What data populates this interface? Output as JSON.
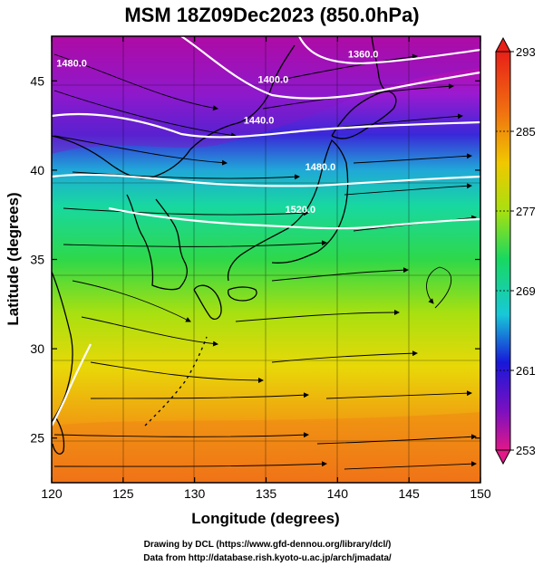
{
  "title": "MSM 18Z09Dec2023 (850.0hPa)",
  "x_axis": {
    "label": "Longitude (degrees)",
    "min": 120,
    "max": 150,
    "ticks": [
      "120",
      "125",
      "130",
      "135",
      "140",
      "145",
      "150"
    ]
  },
  "y_axis": {
    "label": "Latitude  (degrees)",
    "min": 22.5,
    "max": 47.5,
    "ticks": [
      "25",
      "30",
      "35",
      "40",
      "45"
    ]
  },
  "colorbar": {
    "min": 253,
    "max": 293,
    "labels": [
      "293",
      "285",
      "277",
      "269",
      "261",
      "253"
    ],
    "colors": [
      "#d80080",
      "#7a10c0",
      "#1818d8",
      "#18c8d8",
      "#18d860",
      "#a8e010",
      "#f0c800",
      "#f07010",
      "#e01818"
    ]
  },
  "contours": [
    {
      "label": "1480.0",
      "lon": 121.4,
      "lat": 45.8
    },
    {
      "label": "1360.0",
      "lon": 141.8,
      "lat": 46.3
    },
    {
      "label": "1400.0",
      "lon": 135.5,
      "lat": 44.9
    },
    {
      "label": "1440.0",
      "lon": 134.5,
      "lat": 42.6
    },
    {
      "label": "1480.0",
      "lon": 138.8,
      "lat": 40.0
    },
    {
      "label": "1520.0",
      "lon": 137.4,
      "lat": 37.6
    }
  ],
  "credits": {
    "line1": "Drawing by DCL (https://www.gfd-dennou.org/library/dcl/)",
    "line2": "Data from http://database.rish.kyoto-u.ac.jp/arch/jmadata/"
  }
}
